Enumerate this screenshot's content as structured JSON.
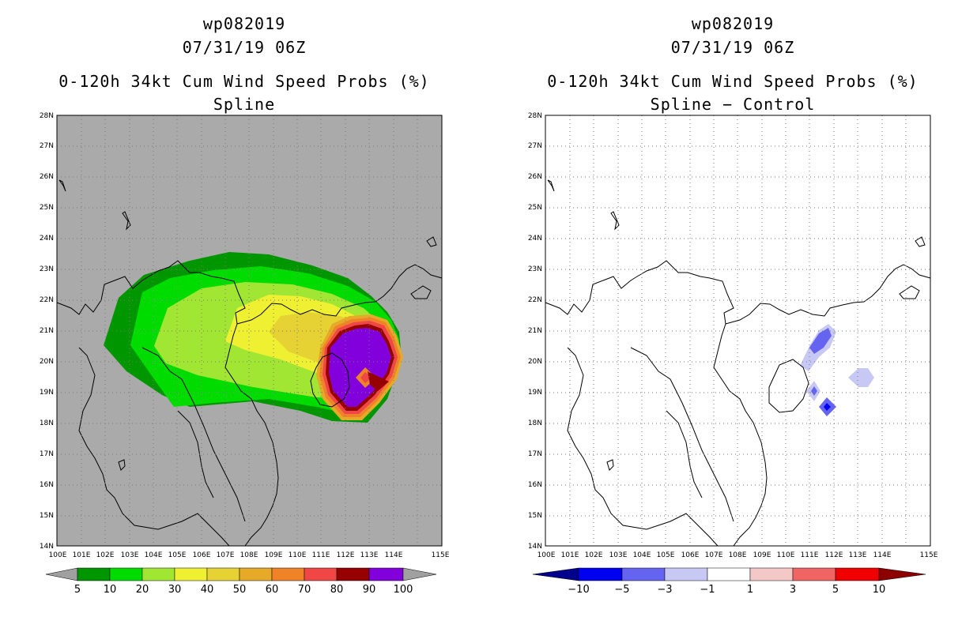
{
  "left": {
    "storm_id": "wp082019",
    "date": "07/31/19 06Z",
    "title": "0-120h 34kt Cum Wind Speed Probs (%)",
    "subtitle": "Spline",
    "colorbar": {
      "labels": [
        "5",
        "10",
        "20",
        "30",
        "40",
        "50",
        "60",
        "70",
        "80",
        "90",
        "100"
      ],
      "colors": [
        "#a0a0a0",
        "#009600",
        "#00dc00",
        "#a0e632",
        "#f0f032",
        "#e6d232",
        "#e6aa28",
        "#f08228",
        "#f04646",
        "#960000",
        "#8200dc",
        "#a0a0a0"
      ]
    }
  },
  "right": {
    "storm_id": "wp082019",
    "date": "07/31/19 06Z",
    "title": "0-120h 34kt Cum Wind Speed Probs (%)",
    "subtitle": "Spline − Control",
    "colorbar": {
      "labels": [
        "−10",
        "−5",
        "−3",
        "−1",
        "1",
        "3",
        "5",
        "10"
      ],
      "colors": [
        "#00008c",
        "#0000f0",
        "#6464f0",
        "#c8c8f5",
        "#ffffff",
        "#f5c8c8",
        "#f06464",
        "#f00000",
        "#8c0000"
      ]
    }
  },
  "axes": {
    "lat_labels": [
      "14N",
      "15N",
      "16N",
      "17N",
      "18N",
      "19N",
      "20N",
      "21N",
      "22N",
      "23N",
      "24N",
      "25N",
      "26N",
      "27N",
      "28N"
    ],
    "lon_labels": [
      "100E",
      "101E",
      "102E",
      "103E",
      "104E",
      "105E",
      "106E",
      "107E",
      "108E",
      "109E",
      "110E",
      "111E",
      "112E",
      "113E",
      "114E",
      "115E"
    ]
  },
  "colors": {
    "ocean_left": "#aaaaaa",
    "ocean_right": "#ffffff",
    "grid": "#7a7a7a",
    "border": "#000000"
  }
}
